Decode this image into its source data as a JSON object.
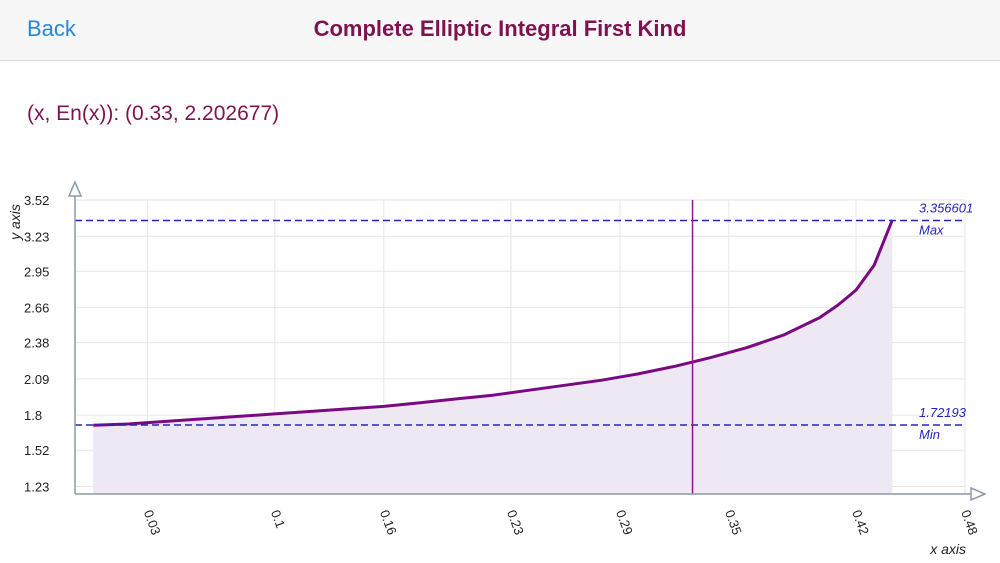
{
  "nav": {
    "back_label": "Back",
    "title": "Complete Elliptic Integral First Kind"
  },
  "readout": "(x, En(x)): (0.33, 2.202677)",
  "chart_data": {
    "type": "area",
    "xlabel": "x axis",
    "ylabel": "y axis",
    "x_ticks": [
      "0.03",
      "0.1",
      "0.16",
      "0.23",
      "0.29",
      "0.35",
      "0.42",
      "0.48"
    ],
    "x_tick_values": [
      0.03,
      0.1,
      0.16,
      0.23,
      0.29,
      0.35,
      0.42,
      0.48
    ],
    "y_ticks": [
      "3.52",
      "3.23",
      "2.95",
      "2.66",
      "2.38",
      "2.09",
      "1.8",
      "1.52",
      "1.23"
    ],
    "y_tick_values": [
      3.52,
      3.23,
      2.95,
      2.66,
      2.38,
      2.09,
      1.8,
      1.52,
      1.23
    ],
    "xlim": [
      -0.01,
      0.48
    ],
    "ylim": [
      1.17,
      3.52
    ],
    "grid": true,
    "series": [
      {
        "x": [
          0.0,
          0.02,
          0.04,
          0.06,
          0.08,
          0.1,
          0.12,
          0.14,
          0.16,
          0.18,
          0.2,
          0.22,
          0.24,
          0.26,
          0.28,
          0.3,
          0.32,
          0.34,
          0.36,
          0.38,
          0.4,
          0.41,
          0.42,
          0.43,
          0.44
        ],
        "y": [
          1.72,
          1.73,
          1.75,
          1.77,
          1.79,
          1.81,
          1.83,
          1.85,
          1.87,
          1.9,
          1.93,
          1.96,
          2.0,
          2.04,
          2.08,
          2.13,
          2.19,
          2.26,
          2.34,
          2.44,
          2.58,
          2.68,
          2.8,
          3.0,
          3.36
        ],
        "color": "#7a0a82",
        "fill": "#eee8f2"
      }
    ],
    "cursor": {
      "x": 0.33,
      "y": 2.202677,
      "color": "#8a1a8a"
    },
    "reference_lines": [
      {
        "name": "Max",
        "value": 3.356601,
        "value_label": "3.356601",
        "color": "#2525b8"
      },
      {
        "name": "Min",
        "value": 1.72193,
        "value_label": "1.72193",
        "color": "#2525b8"
      }
    ]
  }
}
